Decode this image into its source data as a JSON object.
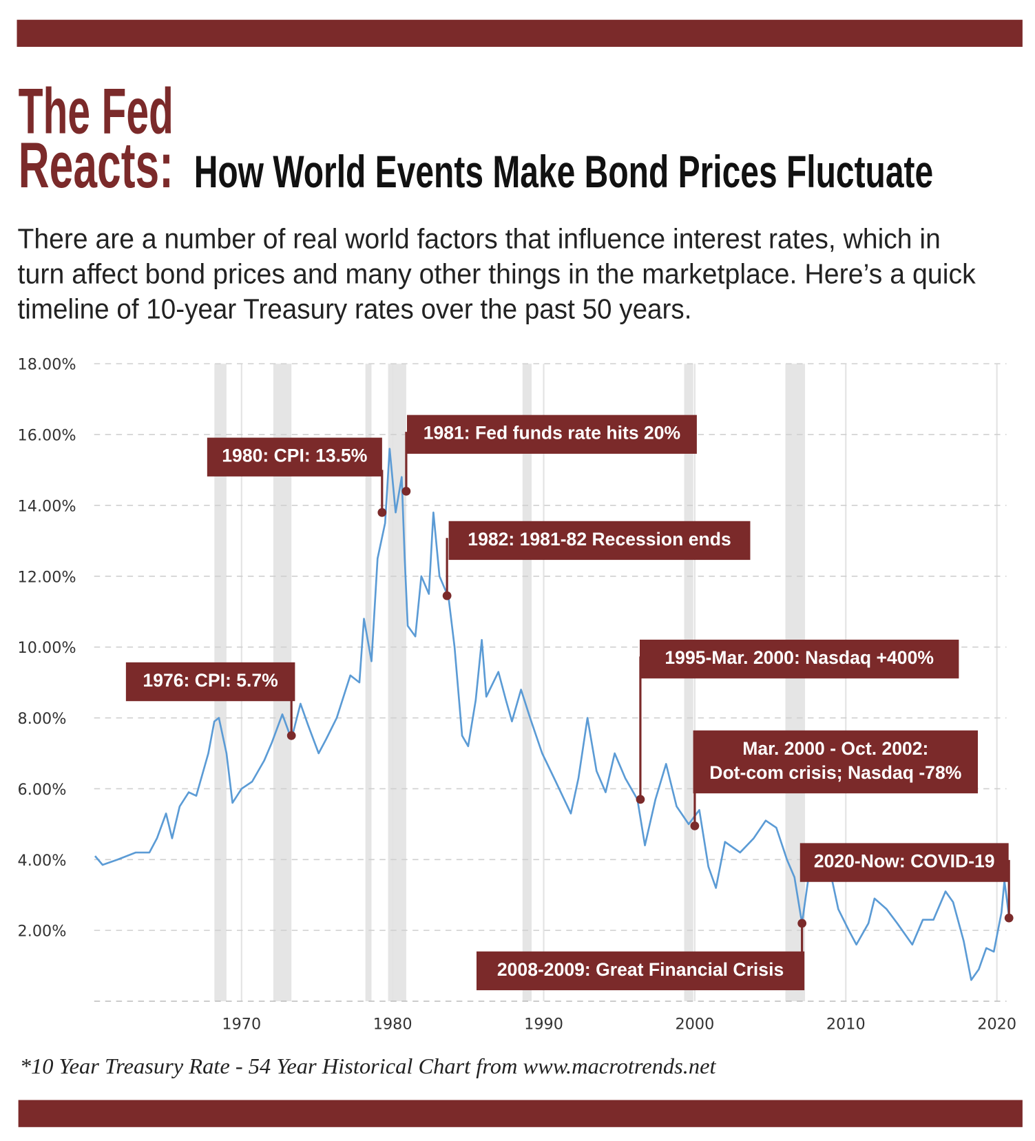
{
  "header": {
    "title_lines": [
      "The Fed",
      "Reacts:"
    ],
    "subtitle": "How World Events Make Bond Prices Fluctuate",
    "intro_lines": [
      "There are a number of real world factors that influence interest rates, which in",
      "turn affect bond prices and many other things in the marketplace. Here’s a quick",
      "timeline of 10-year Treasury rates over the past 50 years."
    ]
  },
  "chart_data": {
    "type": "line",
    "series": [
      {
        "name": "10 Year Treasury Rate",
        "color": "#5b9bd5",
        "x": [
          1960.3,
          1960.8,
          1961.8,
          1963.0,
          1963.9,
          1964.4,
          1965.0,
          1965.4,
          1965.9,
          1966.5,
          1967.0,
          1967.8,
          1968.2,
          1968.5,
          1969.0,
          1969.4,
          1970.0,
          1970.7,
          1971.5,
          1972.0,
          1972.7,
          1973.3,
          1973.9,
          1974.4,
          1975.1,
          1975.6,
          1976.3,
          1977.2,
          1977.8,
          1978.1,
          1978.6,
          1979.0,
          1979.5,
          1979.8,
          1980.2,
          1980.6,
          1980.8,
          1981.0,
          1981.5,
          1981.9,
          1982.4,
          1982.7,
          1983.1,
          1983.7,
          1984.1,
          1984.6,
          1985.0,
          1985.5,
          1985.9,
          1986.2,
          1987.0,
          1987.5,
          1987.9,
          1988.5,
          1989.1,
          1989.9,
          1990.8,
          1991.8,
          1992.3,
          1992.9,
          1993.5,
          1994.1,
          1994.7,
          1995.4,
          1996.2,
          1996.7,
          1997.4,
          1998.1,
          1998.8,
          1999.6,
          2000.3,
          2000.9,
          2001.4,
          2002.0,
          2003.0,
          2003.9,
          2004.7,
          2005.4,
          2006.1,
          2006.6,
          2007.1,
          2007.6,
          2008.3,
          2009.1,
          2009.5,
          2010.2,
          2010.7,
          2011.5,
          2011.9,
          2012.7,
          2013.4,
          2014.4,
          2015.1,
          2015.8,
          2016.6,
          2017.1,
          2017.8,
          2018.3,
          2018.8,
          2019.3,
          2019.8,
          2020.3,
          2020.5,
          2020.8
        ],
        "values": [
          4.1,
          3.85,
          4.0,
          4.2,
          4.2,
          4.6,
          5.3,
          4.6,
          5.5,
          5.9,
          5.8,
          7.0,
          7.9,
          8.0,
          7.0,
          5.6,
          6.0,
          6.2,
          6.8,
          7.3,
          8.1,
          7.4,
          8.4,
          7.8,
          7.0,
          7.4,
          8.0,
          9.2,
          9.0,
          10.8,
          9.6,
          12.5,
          13.5,
          15.6,
          13.8,
          14.8,
          12.5,
          10.6,
          10.3,
          12.0,
          11.5,
          13.8,
          12.0,
          11.4,
          10.0,
          7.5,
          7.2,
          8.5,
          10.2,
          8.6,
          9.3,
          8.5,
          7.9,
          8.8,
          8.0,
          7.0,
          6.2,
          5.3,
          6.3,
          8.0,
          6.5,
          5.9,
          7.0,
          6.3,
          5.7,
          4.4,
          5.7,
          6.7,
          5.5,
          5.0,
          5.4,
          3.8,
          3.2,
          4.5,
          4.2,
          4.6,
          5.1,
          4.9,
          4.0,
          3.5,
          2.2,
          3.7,
          3.7,
          3.4,
          2.6,
          2.0,
          1.6,
          2.2,
          2.9,
          2.6,
          2.2,
          1.6,
          2.3,
          2.3,
          3.1,
          2.8,
          1.7,
          0.6,
          0.9,
          1.5,
          1.4,
          2.5,
          3.4,
          2.4
        ]
      }
    ],
    "shaded_ranges": [
      [
        1968.2,
        1969.0
      ],
      [
        1972.1,
        1973.3
      ],
      [
        1978.2,
        1978.6
      ],
      [
        1979.7,
        1980.9
      ],
      [
        1988.6,
        1989.2
      ],
      [
        1999.3,
        1999.9
      ],
      [
        2006.0,
        2007.3
      ]
    ],
    "shade_color": "#e5e5e5",
    "annotations": [
      {
        "text": [
          "1976: CPI: 5.7%"
        ],
        "x": 1973.3,
        "y": 7.5
      },
      {
        "text": [
          "1980: CPI: 13.5%"
        ],
        "x": 1979.3,
        "y": 13.8
      },
      {
        "text": [
          "1981: Fed funds rate hits 20%"
        ],
        "x": 1980.9,
        "y": 14.4
      },
      {
        "text": [
          "1982: 1981-82 Recession ends"
        ],
        "x": 1983.6,
        "y": 11.45
      },
      {
        "text": [
          "1995-Mar. 2000: Nasdaq +400%"
        ],
        "x": 1996.4,
        "y": 5.7
      },
      {
        "text": [
          "Mar. 2000 - Oct. 2002:",
          "Dot-com crisis; Nasdaq -78%"
        ],
        "x": 2000.0,
        "y": 4.95
      },
      {
        "text": [
          "2008-2009: Great Financial Crisis"
        ],
        "x": 2007.1,
        "y": 2.2
      },
      {
        "text": [
          "2020-Now: COVID-19"
        ],
        "x": 2020.8,
        "y": 2.35
      }
    ],
    "annotation_color": "#7b2a2a",
    "xlim": [
      1960,
      2021.6
    ],
    "xticks": [
      1970,
      1980,
      1990,
      2000,
      2010,
      2020
    ],
    "ylim": [
      0,
      18
    ],
    "yticks": [
      {
        "value": 2,
        "label": "2.00%"
      },
      {
        "value": 4,
        "label": "4.00%"
      },
      {
        "value": 6,
        "label": "6.00%"
      },
      {
        "value": 8,
        "label": "8.00%"
      },
      {
        "value": 10,
        "label": "10.00%"
      },
      {
        "value": 12,
        "label": "12.00%"
      },
      {
        "value": 14,
        "label": "14.00%"
      },
      {
        "value": 16,
        "label": "16.00%"
      },
      {
        "value": 18,
        "label": "18.00%"
      }
    ],
    "grid": true
  },
  "footnote": "*10 Year Treasury Rate - 54 Year Historical Chart from www.macrotrends.net"
}
